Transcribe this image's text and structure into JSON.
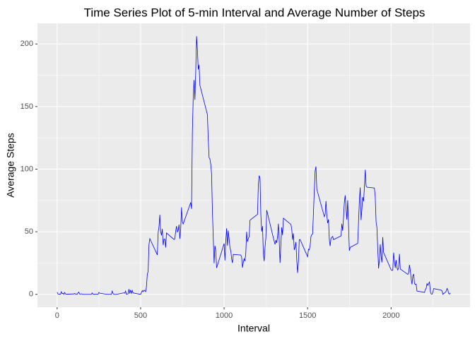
{
  "chart_data": {
    "type": "line",
    "title": "Time Series Plot of 5-min Interval and Average Number of Steps",
    "x_label": "Interval",
    "y_label": "Average Steps",
    "x": [
      0,
      5,
      10,
      15,
      20,
      25,
      30,
      35,
      40,
      45,
      50,
      55,
      100,
      105,
      110,
      115,
      120,
      125,
      130,
      135,
      140,
      145,
      150,
      155,
      200,
      205,
      210,
      215,
      220,
      225,
      230,
      235,
      240,
      245,
      250,
      255,
      300,
      305,
      310,
      315,
      320,
      325,
      330,
      335,
      340,
      345,
      350,
      355,
      400,
      405,
      410,
      415,
      420,
      425,
      430,
      435,
      440,
      445,
      450,
      455,
      500,
      505,
      510,
      515,
      520,
      525,
      530,
      535,
      540,
      545,
      550,
      555,
      600,
      605,
      610,
      615,
      620,
      625,
      630,
      635,
      640,
      645,
      650,
      655,
      700,
      705,
      710,
      715,
      720,
      725,
      730,
      735,
      740,
      745,
      750,
      755,
      800,
      805,
      810,
      815,
      820,
      825,
      830,
      835,
      840,
      845,
      850,
      855,
      900,
      905,
      910,
      915,
      920,
      925,
      930,
      935,
      940,
      945,
      950,
      955,
      1000,
      1005,
      1010,
      1015,
      1020,
      1025,
      1030,
      1035,
      1040,
      1045,
      1050,
      1055,
      1100,
      1105,
      1110,
      1115,
      1120,
      1125,
      1130,
      1135,
      1140,
      1145,
      1150,
      1155,
      1200,
      1205,
      1210,
      1215,
      1220,
      1225,
      1230,
      1235,
      1240,
      1245,
      1250,
      1255,
      1300,
      1305,
      1310,
      1315,
      1320,
      1325,
      1330,
      1335,
      1340,
      1345,
      1350,
      1355,
      1400,
      1405,
      1410,
      1415,
      1420,
      1425,
      1430,
      1435,
      1440,
      1445,
      1450,
      1455,
      1500,
      1505,
      1510,
      1515,
      1520,
      1525,
      1530,
      1535,
      1540,
      1545,
      1550,
      1555,
      1600,
      1605,
      1610,
      1615,
      1620,
      1625,
      1630,
      1635,
      1640,
      1645,
      1650,
      1655,
      1700,
      1705,
      1710,
      1715,
      1720,
      1725,
      1730,
      1735,
      1740,
      1745,
      1750,
      1755,
      1800,
      1805,
      1810,
      1815,
      1820,
      1825,
      1830,
      1835,
      1840,
      1845,
      1850,
      1855,
      1900,
      1905,
      1910,
      1915,
      1920,
      1925,
      1930,
      1935,
      1940,
      1945,
      1950,
      1955,
      2000,
      2005,
      2010,
      2015,
      2020,
      2025,
      2030,
      2035,
      2040,
      2045,
      2050,
      2055,
      2100,
      2105,
      2110,
      2115,
      2120,
      2125,
      2130,
      2135,
      2140,
      2145,
      2150,
      2155,
      2200,
      2205,
      2210,
      2215,
      2220,
      2225,
      2230,
      2235,
      2240,
      2245,
      2250,
      2255,
      2300,
      2305,
      2310,
      2315,
      2320,
      2325,
      2330,
      2335,
      2340,
      2345,
      2350,
      2355
    ],
    "series": [
      {
        "name": "Average Steps",
        "color": "#0000ff",
        "values": [
          1.7,
          0.3,
          0.1,
          0.2,
          0.1,
          2.1,
          0.5,
          0.9,
          0,
          1.5,
          0.3,
          0.1,
          0.3,
          0.7,
          0.2,
          0.3,
          0,
          1.1,
          1.8,
          0.2,
          0.2,
          0.4,
          0.3,
          0,
          0,
          0,
          1.1,
          0,
          0,
          0.1,
          0,
          0.2,
          0,
          0,
          1.5,
          0.9,
          0,
          0,
          0,
          0,
          0,
          0,
          2.6,
          0.7,
          0,
          0,
          0,
          0,
          1.2,
          0.9,
          2.6,
          0,
          0.3,
          0.4,
          4.1,
          0.7,
          3.5,
          0.8,
          3.1,
          1.1,
          0,
          1.6,
          3,
          2.2,
          3.3,
          3,
          2.1,
          6.1,
          16,
          18.3,
          39.5,
          44.5,
          31.5,
          49.3,
          53.8,
          63.5,
          50,
          47.1,
          52.2,
          39.3,
          44,
          44.2,
          37.4,
          49,
          43.8,
          44.4,
          50.5,
          54.5,
          49.9,
          51,
          55.7,
          44.3,
          52.3,
          69.5,
          57.8,
          56.2,
          73.4,
          68.2,
          129.4,
          157.5,
          171.2,
          155.4,
          177.3,
          206.2,
          195.9,
          179.6,
          183.4,
          167,
          143.5,
          124,
          109.1,
          108.1,
          103.7,
          96,
          66.2,
          45.2,
          24.8,
          38.8,
          35,
          21.1,
          40.6,
          27,
          42.4,
          52.7,
          38.9,
          50.8,
          44.3,
          37.4,
          34.7,
          28.3,
          25.1,
          31.9,
          31.4,
          29.7,
          21.3,
          25.5,
          28.4,
          26.5,
          33.4,
          50,
          42,
          44.6,
          46,
          59.2,
          63.9,
          87.7,
          94.8,
          92.8,
          63.4,
          50.2,
          54.5,
          32.4,
          26.5,
          37.7,
          45.1,
          67.3,
          42.3,
          39.9,
          43.3,
          41,
          46.2,
          56.4,
          42.8,
          25.1,
          40,
          53.5,
          47.3,
          60.8,
          55.8,
          52,
          43.6,
          48.7,
          35.5,
          37.5,
          41.8,
          27.5,
          17.1,
          26.1,
          43.6,
          43.8,
          30,
          36.1,
          35.5,
          38.8,
          46,
          47.8,
          48.1,
          65.3,
          82.9,
          98.7,
          102.1,
          84,
          62.1,
          64.1,
          74.5,
          63.2,
          56.9,
          59.8,
          43.9,
          38.6,
          44.7,
          45.5,
          46.2,
          43.7,
          46.6,
          56.3,
          50.7,
          61.2,
          73.4,
          79.1,
          68.9,
          59.7,
          75.1,
          56.5,
          34.8,
          37.5,
          40.7,
          58,
          74.7,
          85.3,
          59.3,
          67.8,
          77.7,
          74.2,
          85.3,
          99.5,
          86.6,
          85.6,
          84.9,
          77.8,
          58,
          53.4,
          36.3,
          20.7,
          27.4,
          40,
          30.2,
          25.5,
          45.7,
          33.5,
          19.6,
          19,
          19.3,
          33.3,
          26.8,
          21.2,
          27.3,
          21.3,
          19.5,
          21.3,
          32.3,
          20.2,
          15.9,
          17.2,
          23.5,
          19.2,
          12.5,
          8,
          14.7,
          16.3,
          8.7,
          7.8,
          8.1,
          2.6,
          1.5,
          3.7,
          4.8,
          8.5,
          7.1,
          8.7,
          9.8,
          2.2,
          0.3,
          0.1,
          1.6,
          4.6,
          3.3,
          2.8,
          0,
          0.8,
          1,
          1.6,
          2.6,
          4.7,
          3.3,
          0.6,
          0.2,
          1.1
        ]
      }
    ],
    "xlim": [
      -117.75,
      2472.75
    ],
    "xticks": [
      0,
      500,
      1000,
      1500,
      2000
    ],
    "x_minor_ticks": [
      250,
      750,
      1250,
      1750,
      2250
    ],
    "ylim": [
      -10.3,
      216.5
    ],
    "yticks": [
      0,
      50,
      100,
      150,
      200
    ],
    "y_minor_ticks": [
      25,
      75,
      125,
      175
    ],
    "grid": true
  }
}
